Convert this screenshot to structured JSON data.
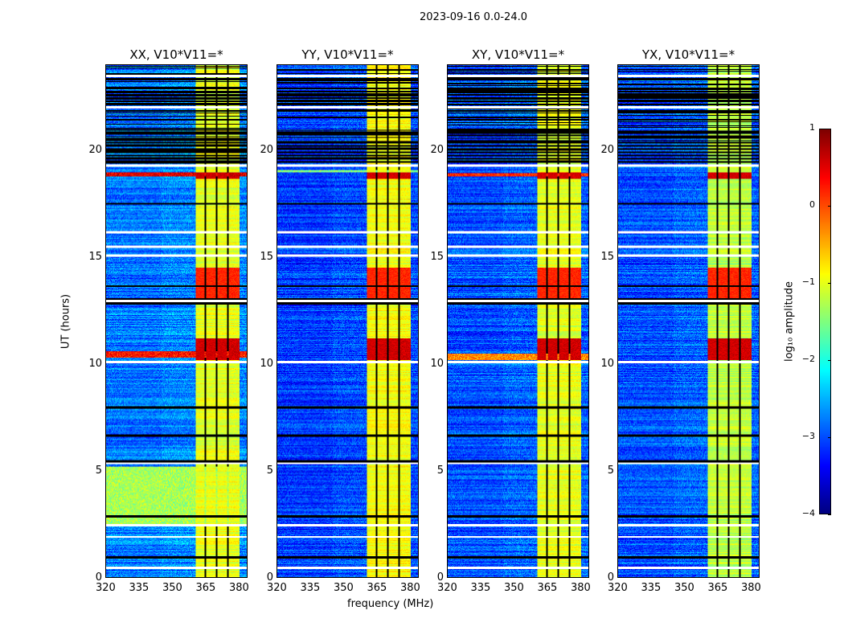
{
  "chart_data": {
    "type": "heatmap",
    "title": "2023-09-16 0.0-24.0",
    "xlabel": "frequency (MHz)",
    "ylabel": "UT (hours)",
    "xlim": [
      320,
      384
    ],
    "ylim": [
      0,
      24
    ],
    "xticks": [
      "320",
      "335",
      "350",
      "365",
      "380"
    ],
    "xtick_values": [
      320,
      335,
      350,
      365,
      380
    ],
    "yticks": [
      "0",
      "5",
      "10",
      "15",
      "20"
    ],
    "ytick_values": [
      0,
      5,
      10,
      15,
      20
    ],
    "colormap": "jet",
    "colorbar": {
      "label": "log₁₀ amplitude",
      "range": [
        -4,
        1
      ],
      "ticks": [
        "1",
        "0",
        "−1",
        "−2",
        "−3",
        "−4"
      ],
      "tick_values": [
        1,
        0,
        -1,
        -2,
        -3,
        -4
      ]
    },
    "panels": [
      {
        "title": "XX, V10*V11=*",
        "base": -2.8,
        "bright_band": -1.0,
        "broadband_hours": [
          [
            2.5,
            5.2,
            -1.3
          ],
          [
            10.3,
            10.6,
            0.3
          ],
          [
            18.8,
            19.0,
            0.5
          ]
        ]
      },
      {
        "title": "YY, V10*V11=*",
        "base": -3.1,
        "bright_band": -0.9,
        "broadband_hours": [
          [
            19.0,
            19.1,
            -1.5
          ]
        ]
      },
      {
        "title": "XY, V10*V11=*",
        "base": -3.0,
        "bright_band": -1.0,
        "broadband_hours": [
          [
            10.2,
            10.5,
            -0.3
          ],
          [
            18.8,
            18.95,
            0.2
          ]
        ]
      },
      {
        "title": "YX, V10*V11=*",
        "base": -3.0,
        "bright_band": -1.2,
        "broadband_hours": []
      }
    ],
    "bright_band_mhz": [
      360.5,
      380.5
    ],
    "band_gaps_mhz": [
      365,
      370,
      375
    ],
    "strong_band_hours": [
      [
        10.2,
        11.2,
        0.6
      ],
      [
        13.0,
        14.5,
        0.2
      ],
      [
        18.7,
        19.0,
        0.6
      ]
    ],
    "blank_hours": [
      0.45,
      1.9,
      2.45,
      5.35,
      10.1,
      12.95,
      15.1,
      15.5,
      16.2,
      19.3,
      22.05,
      23.5
    ],
    "flagged_hours": [
      [
        0.9,
        1.0
      ],
      [
        2.8,
        2.9
      ],
      [
        5.3,
        5.5
      ],
      [
        6.6,
        6.7
      ],
      [
        7.9,
        8.0
      ],
      [
        12.8,
        13.1
      ],
      [
        13.6,
        13.7
      ],
      [
        17.5,
        17.55
      ],
      [
        19.45,
        20.5
      ],
      [
        20.8,
        20.9
      ],
      [
        21.8,
        23.0
      ],
      [
        23.3,
        23.4
      ]
    ]
  }
}
